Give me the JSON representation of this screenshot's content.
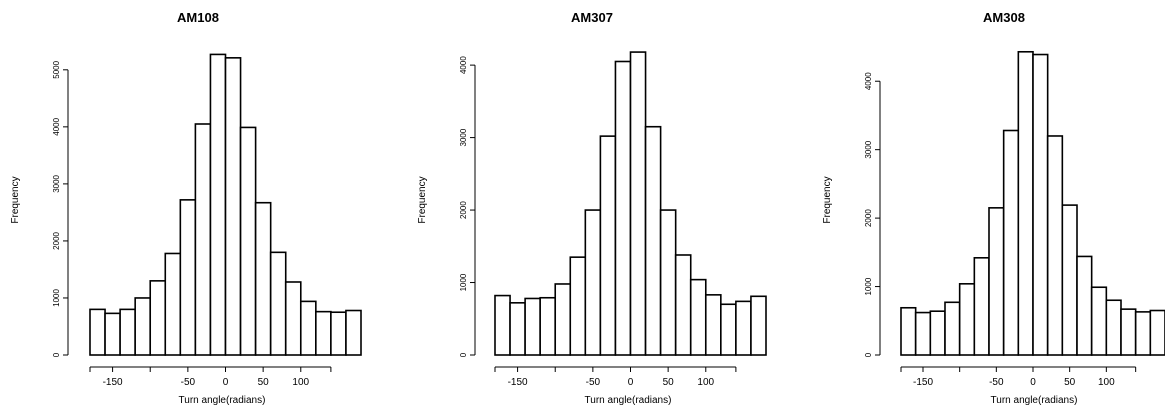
{
  "chart_data": [
    {
      "type": "bar",
      "title": "AM108",
      "xlabel": "Turn angle(radians)",
      "ylabel": "Frequency",
      "x_ticks": [
        "-150",
        "-50",
        "0",
        "50",
        "100"
      ],
      "y_ticks": [
        "0",
        "1000",
        "2000",
        "3000",
        "4000",
        "5000"
      ],
      "bin_edges": [
        -180,
        -160,
        -140,
        -120,
        -100,
        -80,
        -60,
        -40,
        -20,
        0,
        20,
        40,
        60,
        80,
        100,
        120,
        140,
        160,
        180
      ],
      "values": [
        800,
        730,
        800,
        1000,
        1300,
        1780,
        2720,
        4050,
        5270,
        5210,
        3990,
        2670,
        1800,
        1280,
        940,
        760,
        750,
        780
      ],
      "ylim": [
        0,
        5400
      ],
      "xlim": [
        -180,
        180
      ]
    },
    {
      "type": "bar",
      "title": "AM307",
      "xlabel": "Turn angle(radians)",
      "ylabel": "Frequency",
      "x_ticks": [
        "-150",
        "-50",
        "0",
        "50",
        "100"
      ],
      "y_ticks": [
        "0",
        "1000",
        "2000",
        "3000",
        "4000"
      ],
      "bin_edges": [
        -180,
        -160,
        -140,
        -120,
        -100,
        -80,
        -60,
        -40,
        -20,
        0,
        20,
        40,
        60,
        80,
        100,
        120,
        140,
        160,
        180
      ],
      "values": [
        820,
        720,
        780,
        790,
        980,
        1350,
        2000,
        3020,
        4050,
        4180,
        3150,
        2000,
        1380,
        1040,
        830,
        700,
        740,
        810
      ],
      "ylim": [
        0,
        4250
      ],
      "xlim": [
        -180,
        180
      ]
    },
    {
      "type": "bar",
      "title": "AM308",
      "xlabel": "Turn angle(radians)",
      "ylabel": "Frequency",
      "x_ticks": [
        "-150",
        "-50",
        "0",
        "50",
        "100"
      ],
      "y_ticks": [
        "0",
        "1000",
        "2000",
        "3000",
        "4000"
      ],
      "bin_edges": [
        -180,
        -160,
        -140,
        -120,
        -100,
        -80,
        -60,
        -40,
        -20,
        0,
        20,
        40,
        60,
        80,
        100,
        120,
        140,
        160,
        180
      ],
      "values": [
        690,
        620,
        640,
        770,
        1040,
        1420,
        2150,
        3280,
        4430,
        4390,
        3200,
        2190,
        1440,
        990,
        800,
        670,
        630,
        650
      ],
      "ylim": [
        0,
        4500
      ],
      "xlim": [
        -180,
        180
      ]
    }
  ]
}
